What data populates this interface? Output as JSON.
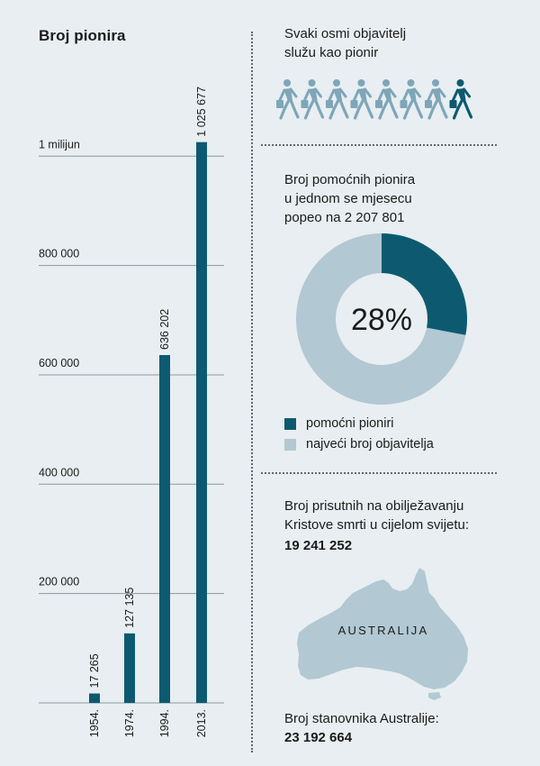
{
  "colors": {
    "primary": "#0d5a70",
    "secondary": "#b2c8d2",
    "walker_light": "#7ea6b9",
    "background": "#e8eef1"
  },
  "chart_data": {
    "type": "bar",
    "title": "Broj pionira",
    "categories": [
      "1954.",
      "1974.",
      "1994.",
      "2013."
    ],
    "values": [
      17265,
      127135,
      636202,
      1025677
    ],
    "data_labels": [
      "17 265",
      "127 135",
      "636 202",
      "1 025 677"
    ],
    "ylim": [
      0,
      1040000
    ],
    "yticks": [
      200000,
      400000,
      600000,
      800000,
      1000000
    ],
    "ytick_labels": [
      "200 000",
      "400 000",
      "600 000",
      "800 000",
      "1 milijun"
    ],
    "grid": true,
    "xlabel": "",
    "ylabel": ""
  },
  "pioneer_ratio": {
    "text": "Svaki osmi objavitelj\nslužu kao pionir",
    "total_figures": 8,
    "highlighted_figures": 1,
    "icon": "walking-person-with-bag-icon"
  },
  "auxiliary": {
    "text": "Broj pomoćnih pionira\nu jednom se mjesecu\npopeo na 2 207 801",
    "donut": {
      "type": "pie",
      "percent": 28,
      "percent_label": "28%",
      "legend": [
        "pomoćni pioniri",
        "najveći broj objavitelja"
      ]
    }
  },
  "memorial": {
    "text": "Broj prisutnih na obilježavanju\nKristove smrti u cijelom svijetu:",
    "value": "19 241 252",
    "map_label": "AUSTRALIJA",
    "population_text": "Broj stanovnika Australije:",
    "population_value": "23 192 664"
  }
}
